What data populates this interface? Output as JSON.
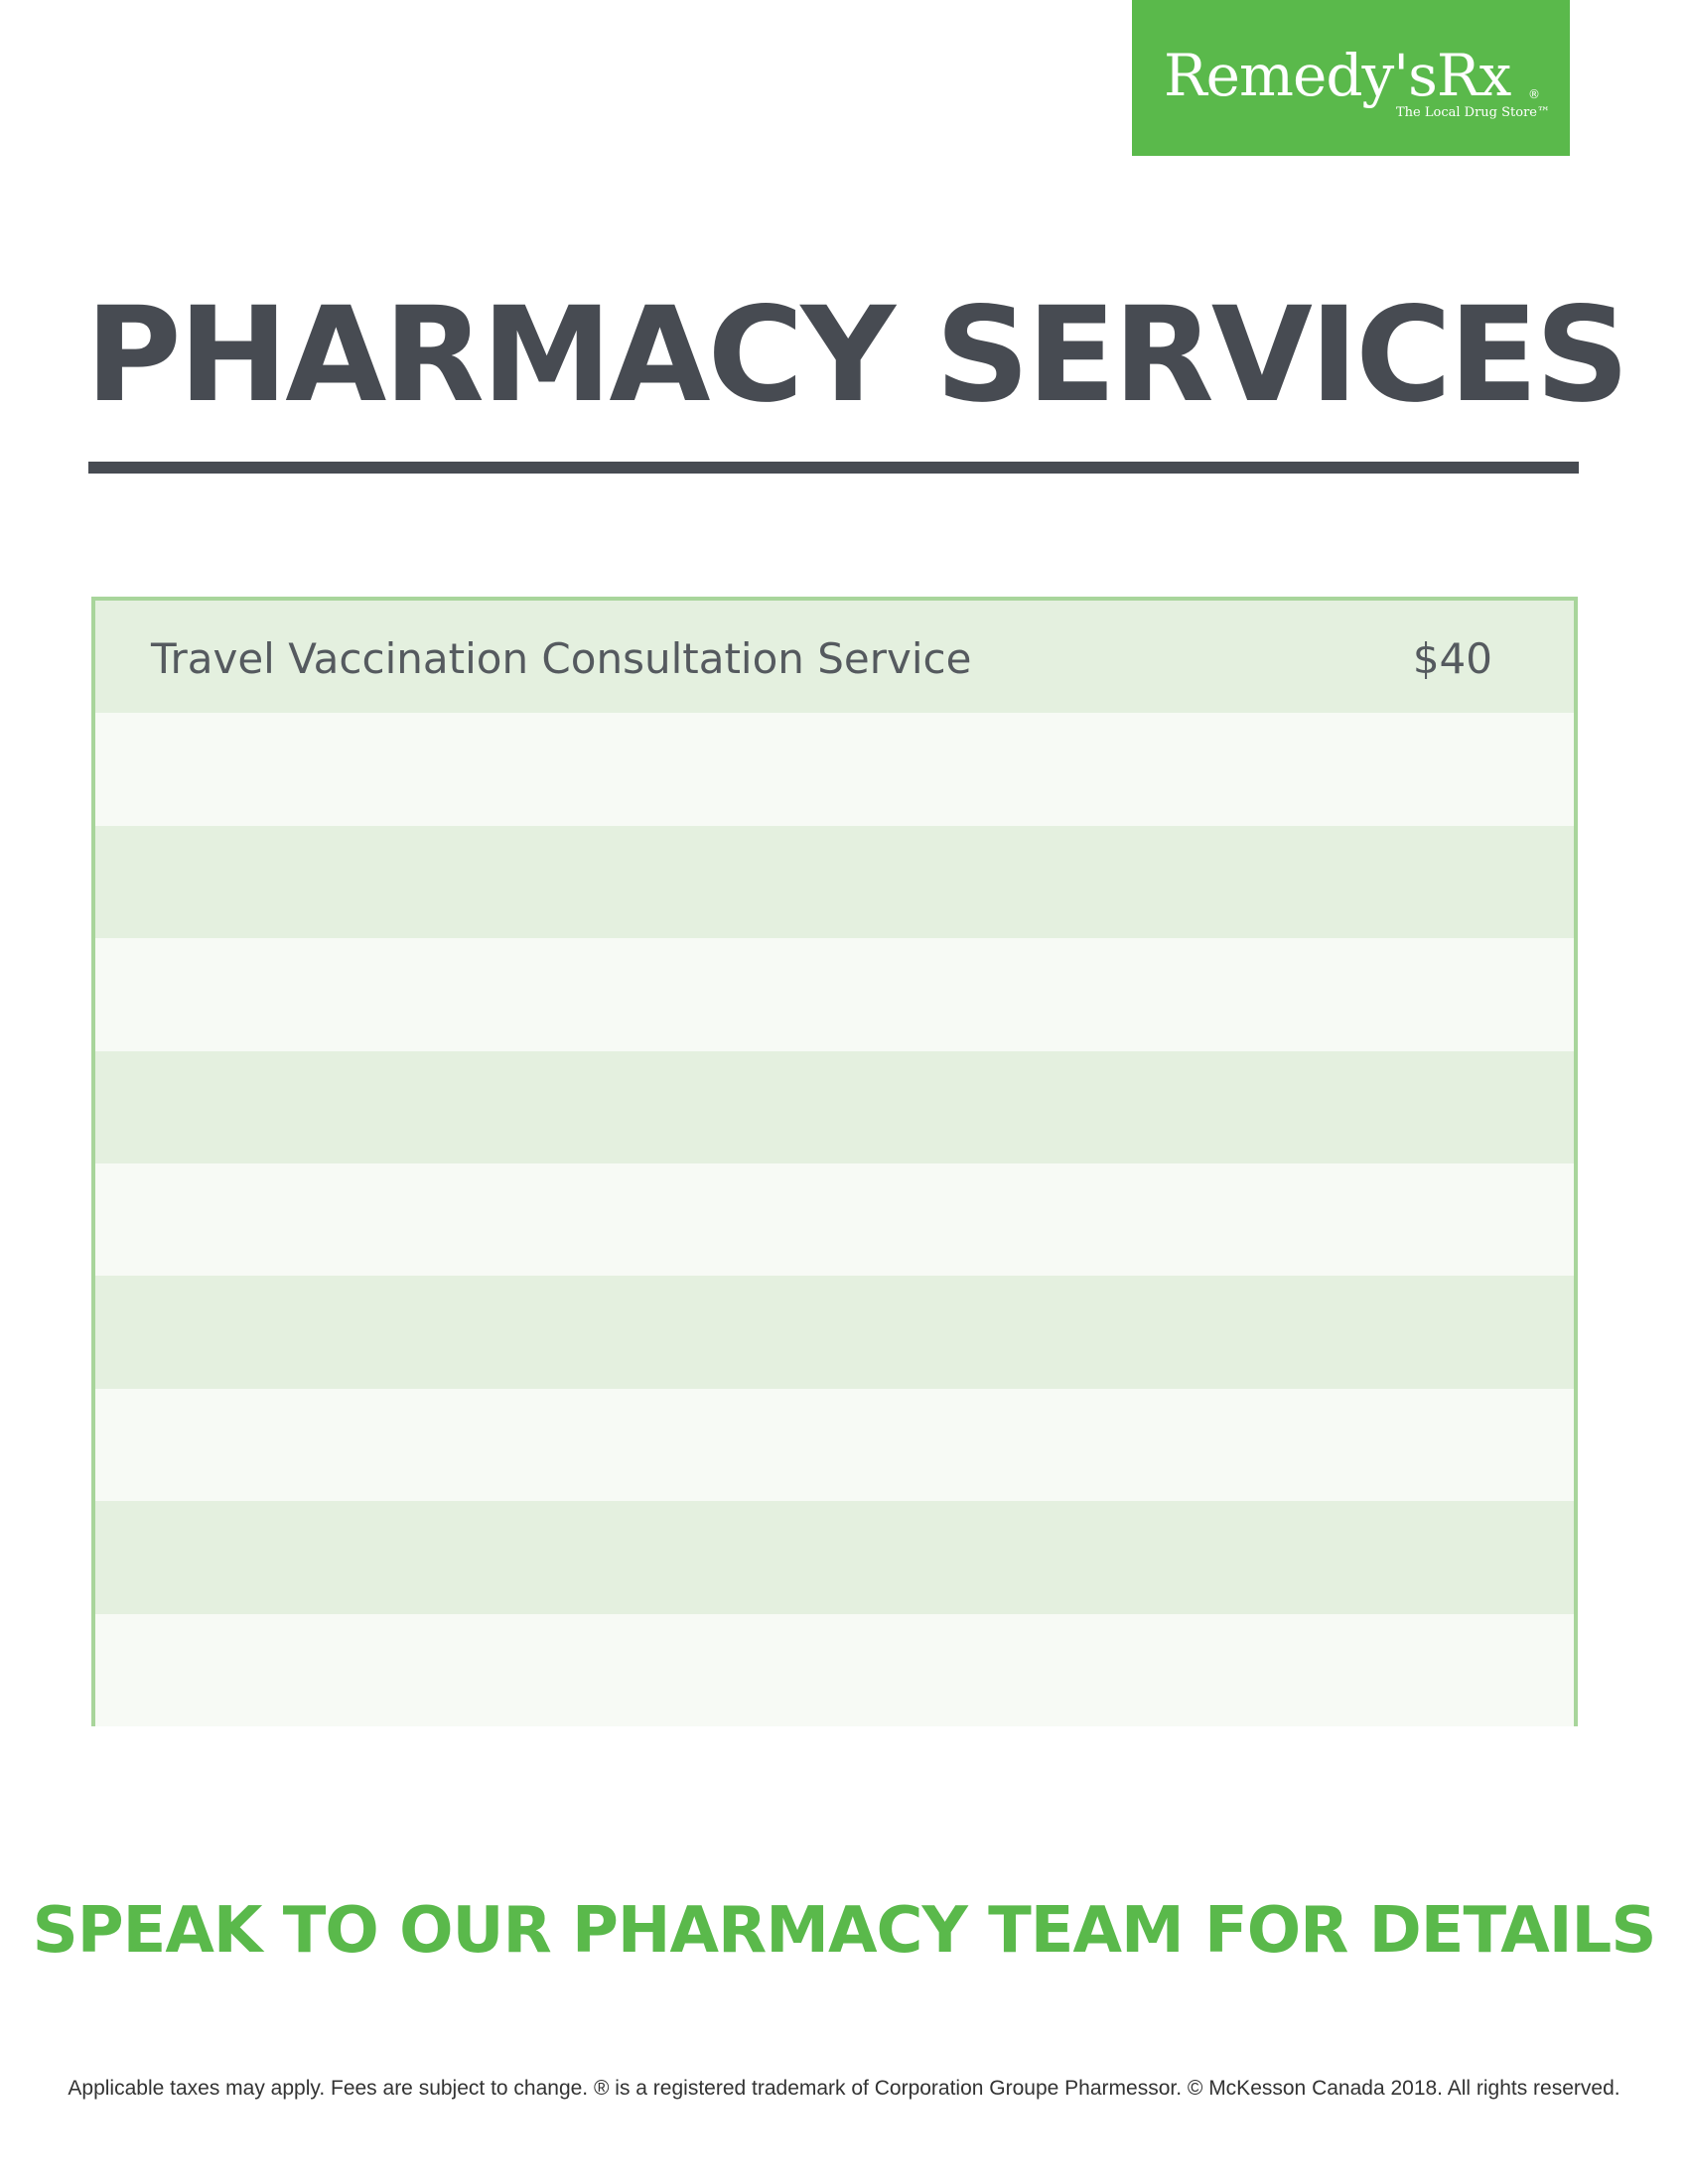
{
  "logo": {
    "wordmark": "Remedy'sRx",
    "registered": "®",
    "tagline": "The Local Drug Store™"
  },
  "title": "PHARMACY SERVICES",
  "services": [
    {
      "name": "Travel Vaccination Consultation Service",
      "price": "$40"
    },
    {
      "name": "",
      "price": ""
    },
    {
      "name": "",
      "price": ""
    },
    {
      "name": "",
      "price": ""
    },
    {
      "name": "",
      "price": ""
    },
    {
      "name": "",
      "price": ""
    },
    {
      "name": "",
      "price": ""
    },
    {
      "name": "",
      "price": ""
    },
    {
      "name": "",
      "price": ""
    },
    {
      "name": "",
      "price": ""
    }
  ],
  "cta": "SPEAK TO OUR PHARMACY TEAM FOR DETAILS",
  "footnote": "Applicable taxes may apply. Fees are subject to change. ® is a registered trademark of Corporation Groupe Pharmessor. © McKesson Canada 2018. All rights reserved.",
  "colors": {
    "brand_green": "#5ab94b",
    "title_dark": "#474b52",
    "table_border": "#a8d59b",
    "stripe": "#e4f0df"
  }
}
